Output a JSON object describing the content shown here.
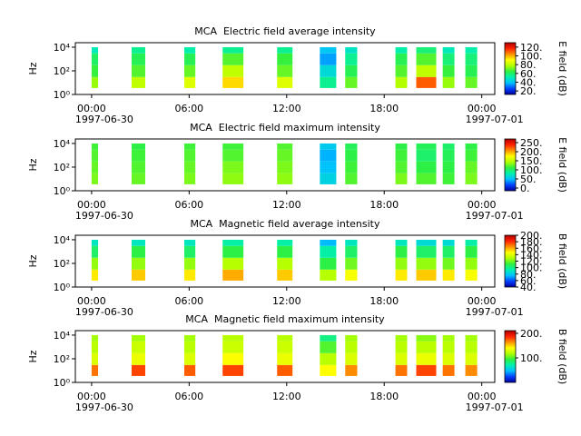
{
  "chart_data": [
    {
      "type": "spectrogram",
      "title": "MCA  Electric field average intensity",
      "y_label": "Hz",
      "colorbar_label": "E field (dB)",
      "xlim": [
        -1,
        24.8
      ],
      "xticks": [
        {
          "value": 0,
          "label": "00:00"
        },
        {
          "value": 6,
          "label": "06:00"
        },
        {
          "value": 12,
          "label": "12:00"
        },
        {
          "value": 18,
          "label": "18:00"
        },
        {
          "value": 24,
          "label": "00:00"
        }
      ],
      "xtick_dates": [
        {
          "value": 0,
          "label": "1997-06-30"
        },
        {
          "value": 24,
          "label": "1997-07-01"
        }
      ],
      "ylim": [
        1,
        24000
      ],
      "log_y": true,
      "yticks": [
        {
          "value": 1,
          "label": "10⁰"
        },
        {
          "value": 100,
          "label": "10²"
        },
        {
          "value": 10000,
          "label": "10⁴"
        }
      ],
      "y_bins": [
        3.5,
        30,
        300,
        3000,
        10000
      ],
      "clim": [
        12,
        130
      ],
      "cticks": [
        {
          "value": 20,
          "label": "20."
        },
        {
          "value": 40,
          "label": "40."
        },
        {
          "value": 60,
          "label": "60."
        },
        {
          "value": 80,
          "label": "80."
        },
        {
          "value": 100,
          "label": "100."
        },
        {
          "value": 120,
          "label": "120."
        }
      ],
      "colormap": [
        "#00009c",
        "#0040ff",
        "#00c0ff",
        "#00f0b0",
        "#30f040",
        "#b0ff00",
        "#ffff00",
        "#ff9000",
        "#ff2000",
        "#b00000"
      ],
      "segments": [
        {
          "start": 0,
          "end": 0.4,
          "values": [
            75,
            65,
            60,
            50
          ]
        },
        {
          "start": 2.46,
          "end": 3.3,
          "values": [
            80,
            68,
            62,
            55
          ]
        },
        {
          "start": 5.7,
          "end": 6.38,
          "values": [
            85,
            70,
            62,
            52
          ]
        },
        {
          "start": 8.06,
          "end": 9.34,
          "values": [
            95,
            80,
            68,
            55
          ]
        },
        {
          "start": 11.41,
          "end": 12.36,
          "values": [
            85,
            70,
            65,
            55
          ]
        },
        {
          "start": 14.04,
          "end": 15.05,
          "values": [
            55,
            45,
            35,
            40
          ]
        },
        {
          "start": 15.6,
          "end": 16.34,
          "values": [
            70,
            62,
            55,
            48
          ]
        },
        {
          "start": 18.69,
          "end": 19.41,
          "values": [
            78,
            68,
            62,
            52
          ]
        },
        {
          "start": 19.97,
          "end": 21.2,
          "values": [
            110,
            80,
            68,
            58
          ]
        },
        {
          "start": 21.6,
          "end": 22.32,
          "values": [
            75,
            65,
            58,
            50
          ]
        },
        {
          "start": 22.99,
          "end": 23.72,
          "values": [
            70,
            62,
            58,
            52
          ]
        }
      ]
    },
    {
      "type": "spectrogram",
      "title": "MCA  Electric field maximum intensity",
      "y_label": "Hz",
      "colorbar_label": "E field (dB)",
      "xlim": [
        -1,
        24.8
      ],
      "xticks": [
        {
          "value": 0,
          "label": "00:00"
        },
        {
          "value": 6,
          "label": "06:00"
        },
        {
          "value": 12,
          "label": "12:00"
        },
        {
          "value": 18,
          "label": "18:00"
        },
        {
          "value": 24,
          "label": "00:00"
        }
      ],
      "xtick_dates": [
        {
          "value": 0,
          "label": "1997-06-30"
        },
        {
          "value": 24,
          "label": "1997-07-01"
        }
      ],
      "ylim": [
        1,
        24000
      ],
      "log_y": true,
      "yticks": [
        {
          "value": 1,
          "label": "10⁰"
        },
        {
          "value": 100,
          "label": "10²"
        },
        {
          "value": 10000,
          "label": "10⁴"
        }
      ],
      "y_bins": [
        3.5,
        30,
        300,
        3000,
        10000
      ],
      "clim": [
        -15,
        270
      ],
      "cticks": [
        {
          "value": 0,
          "label": "0."
        },
        {
          "value": 50,
          "label": "50."
        },
        {
          "value": 100,
          "label": "100."
        },
        {
          "value": 150,
          "label": "150."
        },
        {
          "value": 200,
          "label": "200."
        },
        {
          "value": 250,
          "label": "250."
        }
      ],
      "colormap": [
        "#00009c",
        "#0040ff",
        "#00c0ff",
        "#00f0b0",
        "#30f040",
        "#b0ff00",
        "#ffff00",
        "#ff9000",
        "#ff2000",
        "#b00000"
      ],
      "segments": [
        {
          "start": 0,
          "end": 0.4,
          "values": [
            130,
            125,
            120,
            115
          ]
        },
        {
          "start": 2.46,
          "end": 3.3,
          "values": [
            125,
            120,
            115,
            110
          ]
        },
        {
          "start": 5.7,
          "end": 6.38,
          "values": [
            130,
            125,
            120,
            115
          ]
        },
        {
          "start": 8.06,
          "end": 9.34,
          "values": [
            135,
            130,
            120,
            115
          ]
        },
        {
          "start": 11.41,
          "end": 12.36,
          "values": [
            135,
            130,
            125,
            120
          ]
        },
        {
          "start": 14.04,
          "end": 15.05,
          "values": [
            60,
            50,
            45,
            55
          ]
        },
        {
          "start": 15.6,
          "end": 16.34,
          "values": [
            120,
            115,
            110,
            105
          ]
        },
        {
          "start": 18.69,
          "end": 19.41,
          "values": [
            130,
            120,
            115,
            110
          ]
        },
        {
          "start": 19.97,
          "end": 21.2,
          "values": [
            120,
            110,
            100,
            105
          ]
        },
        {
          "start": 21.6,
          "end": 22.32,
          "values": [
            115,
            110,
            105,
            100
          ]
        },
        {
          "start": 22.99,
          "end": 23.72,
          "values": [
            130,
            125,
            115,
            110
          ]
        }
      ]
    },
    {
      "type": "spectrogram",
      "title": "MCA  Magnetic field average intensity",
      "y_label": "Hz",
      "colorbar_label": "B field (dB)",
      "xlim": [
        -1,
        24.8
      ],
      "xticks": [
        {
          "value": 0,
          "label": "00:00"
        },
        {
          "value": 6,
          "label": "06:00"
        },
        {
          "value": 12,
          "label": "12:00"
        },
        {
          "value": 18,
          "label": "18:00"
        },
        {
          "value": 24,
          "label": "00:00"
        }
      ],
      "xtick_dates": [
        {
          "value": 0,
          "label": "1997-06-30"
        },
        {
          "value": 24,
          "label": "1997-07-01"
        }
      ],
      "ylim": [
        1,
        24000
      ],
      "log_y": true,
      "yticks": [
        {
          "value": 1,
          "label": "10⁰"
        },
        {
          "value": 100,
          "label": "10²"
        },
        {
          "value": 10000,
          "label": "10⁴"
        }
      ],
      "y_bins": [
        3.5,
        30,
        300,
        3000,
        10000
      ],
      "clim": [
        40,
        200
      ],
      "cticks": [
        {
          "value": 40,
          "label": "40."
        },
        {
          "value": 60,
          "label": "60."
        },
        {
          "value": 80,
          "label": "80."
        },
        {
          "value": 100,
          "label": "100."
        },
        {
          "value": 120,
          "label": "120."
        },
        {
          "value": 140,
          "label": "140."
        },
        {
          "value": 160,
          "label": "160."
        },
        {
          "value": 180,
          "label": "180."
        },
        {
          "value": 200,
          "label": "200."
        }
      ],
      "colormap": [
        "#00009c",
        "#0040ff",
        "#00c0ff",
        "#00f0b0",
        "#30f040",
        "#b0ff00",
        "#ffff00",
        "#ff9000",
        "#ff2000",
        "#b00000"
      ],
      "segments": [
        {
          "start": 0,
          "end": 0.4,
          "values": [
            150,
            125,
            105,
            90
          ]
        },
        {
          "start": 2.46,
          "end": 3.3,
          "values": [
            155,
            125,
            110,
            90
          ]
        },
        {
          "start": 5.7,
          "end": 6.38,
          "values": [
            150,
            125,
            105,
            90
          ]
        },
        {
          "start": 8.06,
          "end": 9.34,
          "values": [
            160,
            130,
            110,
            95
          ]
        },
        {
          "start": 11.41,
          "end": 12.36,
          "values": [
            155,
            130,
            110,
            95
          ]
        },
        {
          "start": 14.04,
          "end": 15.05,
          "values": [
            130,
            110,
            95,
            75
          ]
        },
        {
          "start": 15.6,
          "end": 16.34,
          "values": [
            145,
            120,
            105,
            90
          ]
        },
        {
          "start": 18.69,
          "end": 19.41,
          "values": [
            150,
            125,
            110,
            90
          ]
        },
        {
          "start": 19.97,
          "end": 21.2,
          "values": [
            155,
            125,
            105,
            85
          ]
        },
        {
          "start": 21.6,
          "end": 22.32,
          "values": [
            150,
            120,
            105,
            85
          ]
        },
        {
          "start": 22.99,
          "end": 23.72,
          "values": [
            145,
            125,
            110,
            95
          ]
        }
      ]
    },
    {
      "type": "spectrogram",
      "title": "MCA  Magnetic field maximum intensity",
      "y_label": "Hz",
      "colorbar_label": "B field (dB)",
      "xlim": [
        -1,
        24.8
      ],
      "xticks": [
        {
          "value": 0,
          "label": "00:00"
        },
        {
          "value": 6,
          "label": "06:00"
        },
        {
          "value": 12,
          "label": "12:00"
        },
        {
          "value": 18,
          "label": "18:00"
        },
        {
          "value": 24,
          "label": "00:00"
        }
      ],
      "xtick_dates": [
        {
          "value": 0,
          "label": "1997-06-30"
        },
        {
          "value": 24,
          "label": "1997-07-01"
        }
      ],
      "ylim": [
        1,
        24000
      ],
      "log_y": true,
      "yticks": [
        {
          "value": 1,
          "label": "10⁰"
        },
        {
          "value": 100,
          "label": "10²"
        },
        {
          "value": 10000,
          "label": "10⁴"
        }
      ],
      "y_bins": [
        3.5,
        30,
        300,
        3000,
        10000
      ],
      "clim": [
        0,
        211
      ],
      "cticks": [
        {
          "value": 100,
          "label": "100."
        },
        {
          "value": 200,
          "label": "200."
        }
      ],
      "colormap": [
        "#00009c",
        "#0040ff",
        "#00c0ff",
        "#00f0b0",
        "#30f040",
        "#b0ff00",
        "#ffff00",
        "#ff9000",
        "#ff2000",
        "#b00000"
      ],
      "segments": [
        {
          "start": 0,
          "end": 0.4,
          "values": [
            170,
            130,
            120,
            115
          ]
        },
        {
          "start": 2.46,
          "end": 3.3,
          "values": [
            180,
            135,
            125,
            115
          ]
        },
        {
          "start": 5.7,
          "end": 6.38,
          "values": [
            175,
            130,
            120,
            115
          ]
        },
        {
          "start": 8.06,
          "end": 9.34,
          "values": [
            180,
            140,
            125,
            120
          ]
        },
        {
          "start": 11.41,
          "end": 12.36,
          "values": [
            175,
            135,
            125,
            120
          ]
        },
        {
          "start": 14.04,
          "end": 15.05,
          "values": [
            140,
            120,
            100,
            80
          ]
        },
        {
          "start": 15.6,
          "end": 16.34,
          "values": [
            165,
            130,
            120,
            115
          ]
        },
        {
          "start": 18.69,
          "end": 19.41,
          "values": [
            170,
            130,
            120,
            115
          ]
        },
        {
          "start": 19.97,
          "end": 21.2,
          "values": [
            180,
            135,
            120,
            110
          ]
        },
        {
          "start": 21.6,
          "end": 22.32,
          "values": [
            170,
            130,
            120,
            115
          ]
        },
        {
          "start": 22.99,
          "end": 23.72,
          "values": [
            165,
            130,
            120,
            115
          ]
        }
      ]
    }
  ]
}
